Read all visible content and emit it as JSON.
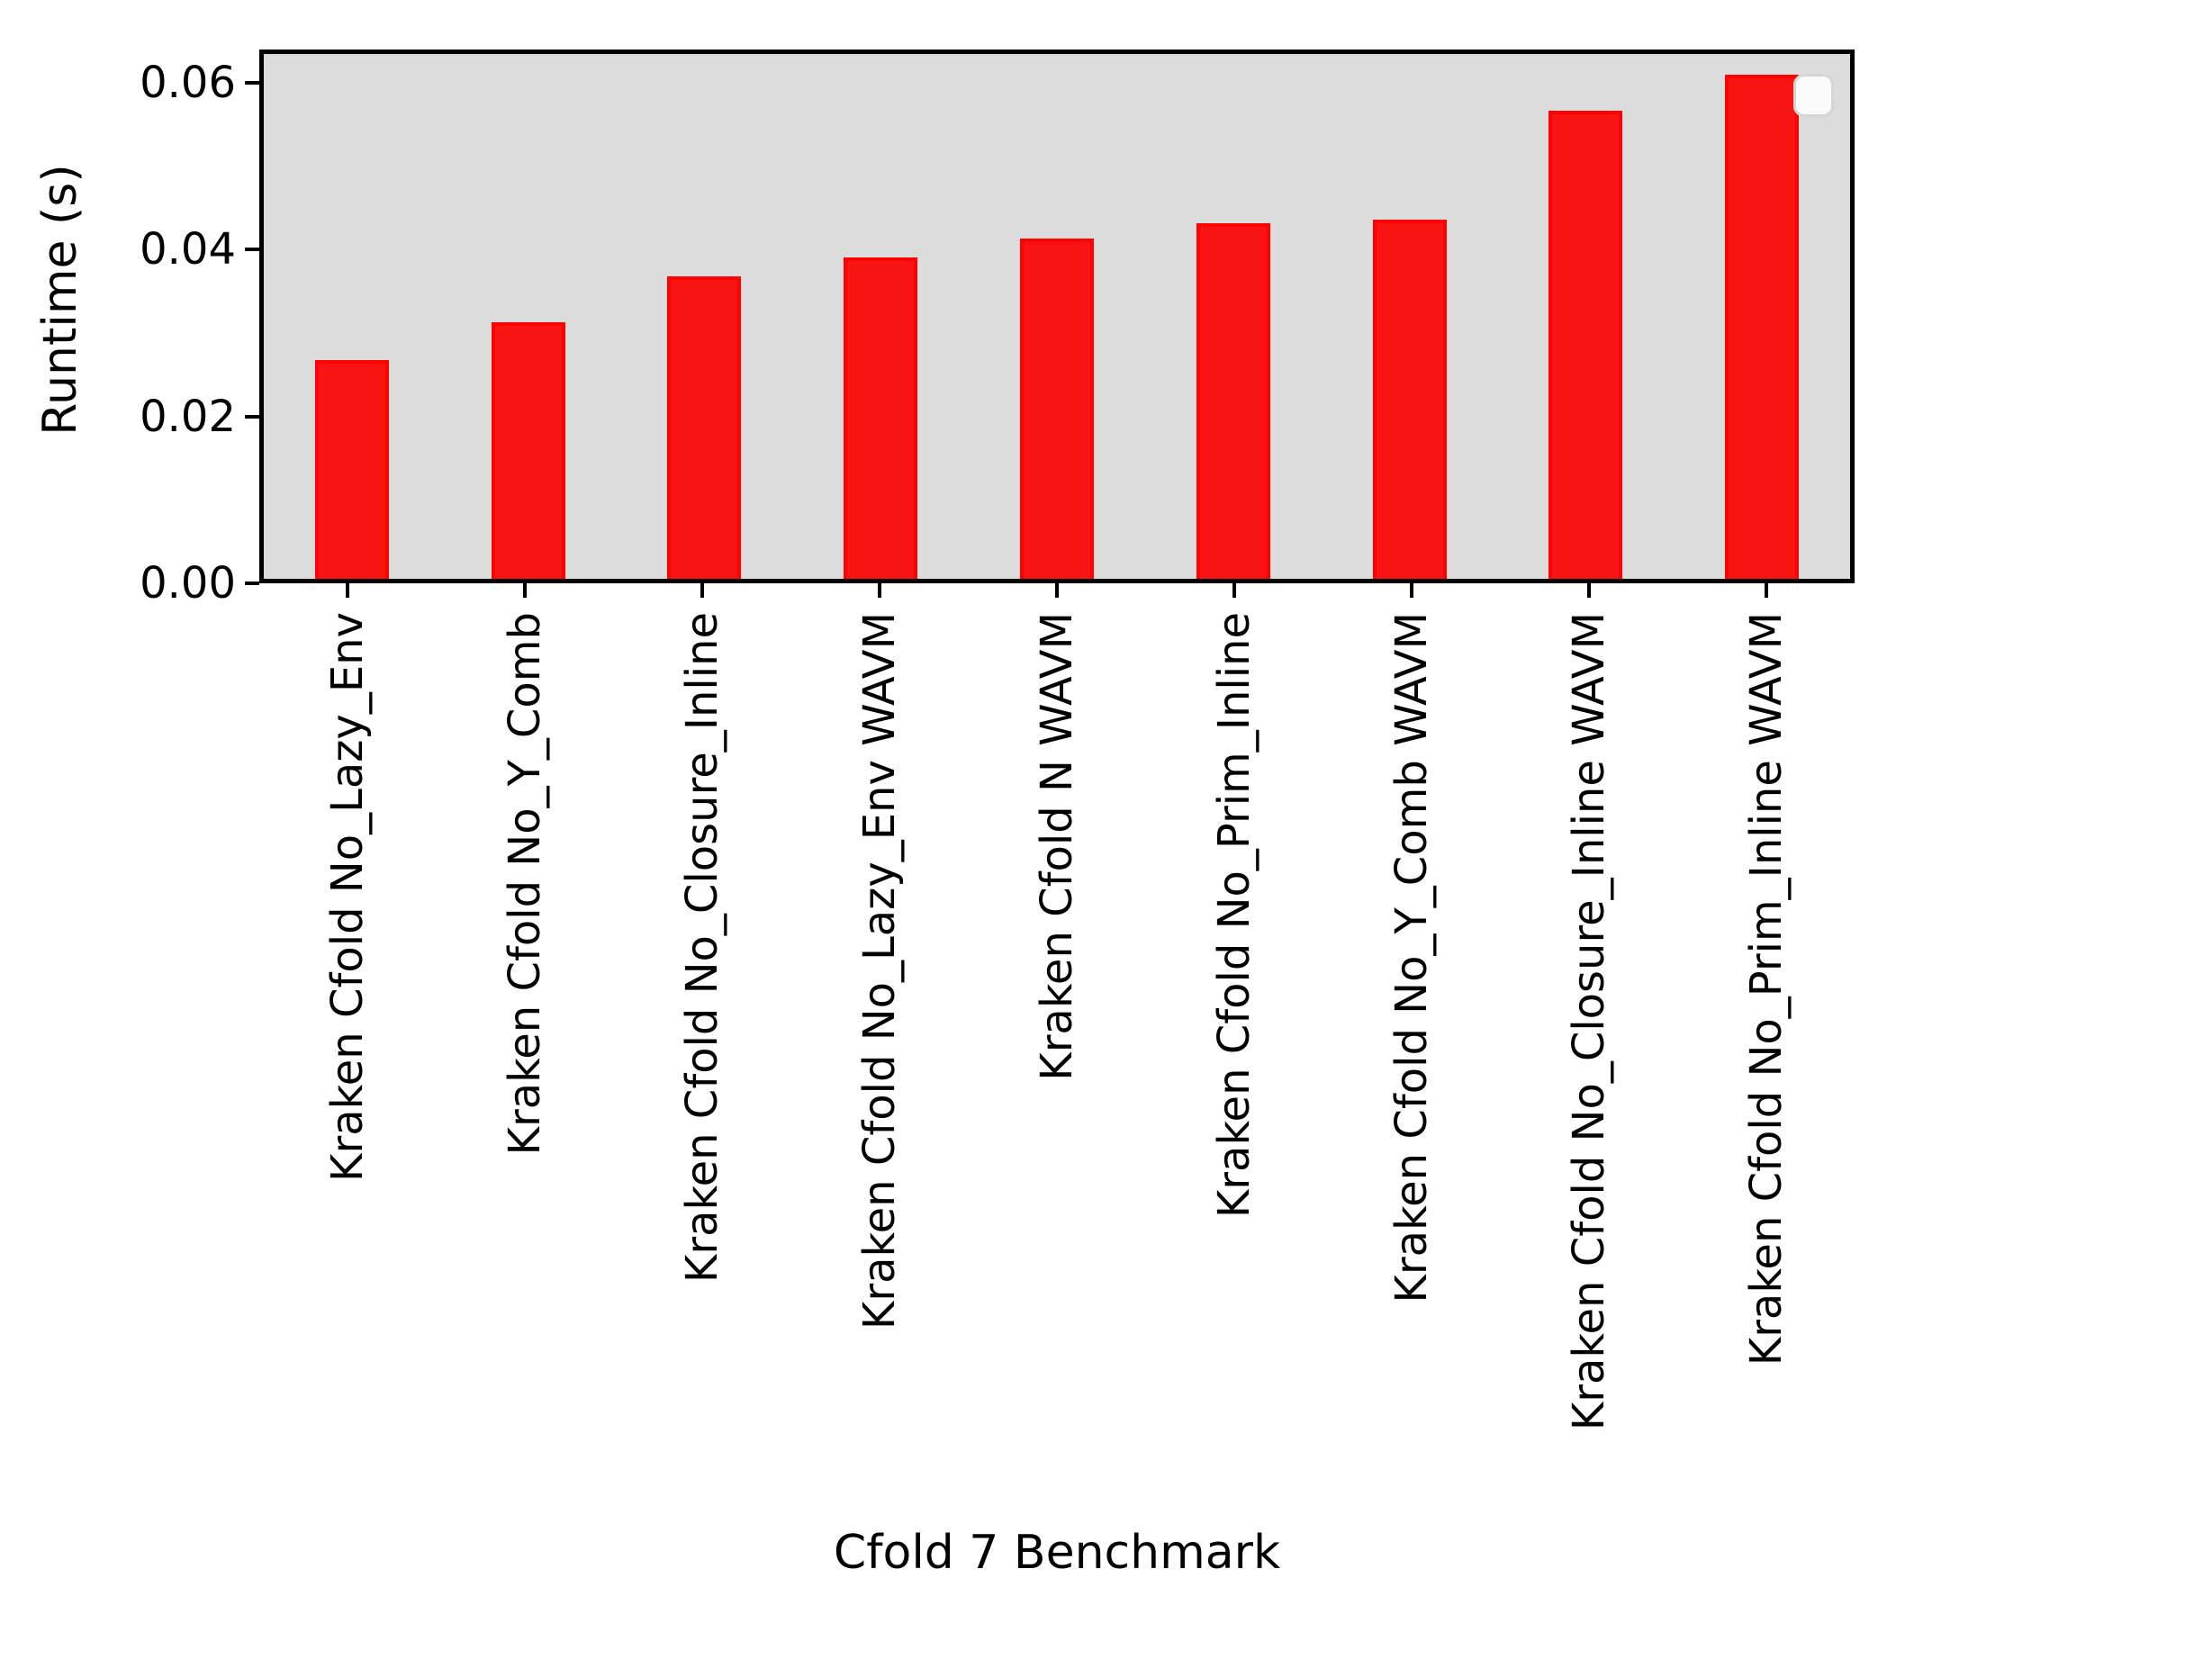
{
  "chart_data": {
    "type": "bar",
    "title": "",
    "xlabel": "Cfold 7 Benchmark",
    "ylabel": "Runtime (s)",
    "categories": [
      "Kraken Cfold No_Lazy_Env",
      "Kraken Cfold No_Y_Comb",
      "Kraken Cfold No_Closure_Inline",
      "Kraken Cfold No_Lazy_Env WAVM",
      "Kraken Cfold N WAVM",
      "Kraken Cfold No_Prim_Inline",
      "Kraken Cfold No_Y_Comb WAVM",
      "Kraken Cfold No_Closure_Inline WAVM",
      "Kraken Cfold No_Prim_Inline WAVM"
    ],
    "values": [
      0.0262,
      0.0308,
      0.0364,
      0.0388,
      0.0411,
      0.0429,
      0.0434,
      0.0566,
      0.061
    ],
    "ylim": [
      0,
      0.064
    ],
    "yticks": [
      0.0,
      0.02,
      0.04,
      0.06
    ],
    "ytick_labels": [
      "0.00",
      "0.02",
      "0.04",
      "0.06"
    ],
    "grid": false,
    "legend": {
      "visible": true,
      "position": "upper right",
      "entries": []
    },
    "colors": {
      "bar_face": "#f91414",
      "bar_edge": "#fe0202",
      "plot_background": "#dcdcdc",
      "figure_background": "#ffffff",
      "text": "#000000"
    }
  }
}
